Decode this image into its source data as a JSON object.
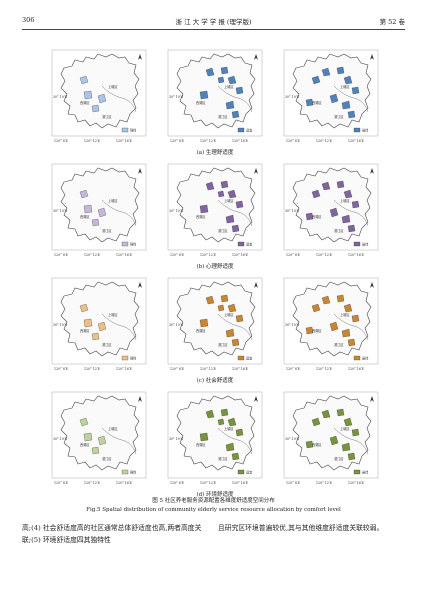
{
  "header": {
    "page_number": "306",
    "journal": "浙 江 大 学 学 报 (理学版)",
    "volume": "第 52 卷"
  },
  "map_labels": {
    "town_a": "上城区",
    "town_b": "西湖区",
    "town_c": "滨江区",
    "lon_left": "120° 8′E",
    "lon_mid": "120° 12′E",
    "lon_right": "120° 16′E",
    "lat": "30° 10′N"
  },
  "legend_levels": [
    "弹性",
    "适宜",
    "最佳"
  ],
  "rows": [
    {
      "caption": "(a)  生理舒适度",
      "color": "#4f81bd",
      "light": "#a9c4e4"
    },
    {
      "caption": "(b)  心理舒适度",
      "color": "#8064a2",
      "light": "#c7b6dc"
    },
    {
      "caption": "(c)  社会舒适度",
      "color": "#c98632",
      "light": "#e9c08a"
    },
    {
      "caption": "(d)  环境舒适度",
      "color": "#77933c",
      "light": "#bdd39a"
    }
  ],
  "figure": {
    "caption_cn": "图 5    社区养老服务资源配置各维度舒适度空间分布",
    "caption_en": "Fig.5    Spatial distribution of community elderly service resource allocation by comfort level"
  },
  "body": {
    "left": "高;(4) 社会舒适度高的社区通常总体舒适度也高,两者高度关联;(5) 环境舒适度四其独特性",
    "right": "且研究区环境普遍较优,其与其他维度舒适度关联较弱。"
  }
}
